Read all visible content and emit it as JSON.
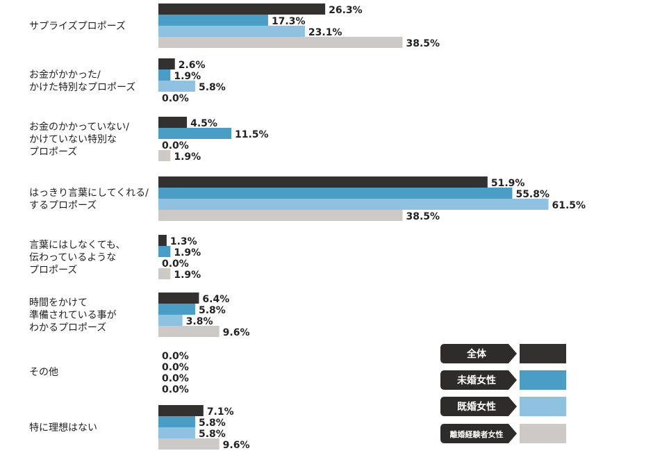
{
  "chart_data": {
    "type": "bar",
    "orientation": "horizontal",
    "categories": [
      [
        "サプライズプロポーズ"
      ],
      [
        "お金がかかった/",
        "かけた特別なプロポーズ"
      ],
      [
        "お金のかかっていない/",
        "かけていない特別な",
        "プロポーズ"
      ],
      [
        "はっきり言葉にしてくれる/",
        "するプロポーズ"
      ],
      [
        "言葉にはしなくても、",
        "伝わっているような",
        "プロポーズ"
      ],
      [
        "時間をかけて",
        "準備されている事が",
        "わかるプロポーズ"
      ],
      [
        "その他"
      ],
      [
        "特に理想はない"
      ]
    ],
    "series": [
      {
        "name": "全体",
        "color": "#333130",
        "values": [
          26.3,
          2.6,
          4.5,
          51.9,
          1.3,
          6.4,
          0.0,
          7.1
        ]
      },
      {
        "name": "未婚女性",
        "color": "#4a9dc4",
        "values": [
          17.3,
          1.9,
          11.5,
          55.8,
          1.9,
          5.8,
          0.0,
          5.8
        ]
      },
      {
        "name": "既婚女性",
        "color": "#8fc1e1",
        "values": [
          23.1,
          5.8,
          0.0,
          61.5,
          0.0,
          3.8,
          0.0,
          5.8
        ]
      },
      {
        "name": "離婚経験者女性",
        "color": "#cdc9c7",
        "values": [
          38.5,
          0.0,
          1.9,
          38.5,
          1.9,
          9.6,
          0.0,
          9.6
        ]
      }
    ],
    "value_suffix": "%",
    "xlim": [
      0,
      65
    ],
    "grid": false,
    "legend_position": "bottom-right"
  }
}
